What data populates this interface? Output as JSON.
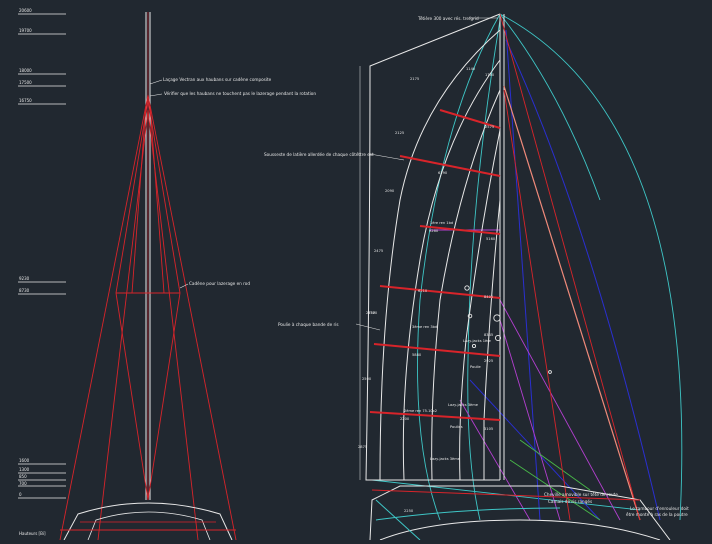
{
  "drawing": {
    "background": "#212830",
    "colors": {
      "white": "#e8e8e8",
      "red": "#d8242a",
      "cyan": "#3ec6c6",
      "blue": "#2a2fd0",
      "magenta": "#b43fd0",
      "green": "#48b848",
      "salmon": "#f08a7a"
    }
  },
  "heights": [
    "20600",
    "19700",
    "18000",
    "17500",
    "16750",
    "9230",
    "8730",
    "1600",
    "1300",
    "850",
    "700",
    "0"
  ],
  "base_label": "Hauteurs [Bi]",
  "mast_notes": {
    "note_top_1": "Laçage Vectran aux haubans sur cadène composite",
    "note_top_2": "Vérifier que les haubans ne touchent pas le lazerage pendant la rotation",
    "note_spreader": "Cadène pour lazerage en rod"
  },
  "sail_notes": {
    "head_note": "Têtière 300 avec rés. trefgrid",
    "batten_note": "Sousseste de latière allerdée de chaque côtéttre est",
    "reef_note": "Poulie à chaque bande de ris",
    "bottom_note_1": "Le tambour d'enrouleur doit",
    "bottom_note_2": "être monté à ras de la poutre",
    "bottom_note_3": "Cheville amovible sur tête de route",
    "bottom_note_4": "Camais de ris rangés"
  },
  "panel_labels": {
    "l1": "1140",
    "l2": "1760",
    "l3": "2175",
    "l4": "2125",
    "l5": "2090",
    "l6": "2475",
    "l7": "2570",
    "l8": "2500",
    "l9": "2875",
    "l10": "2575",
    "l11": "1ère ren 1bd",
    "l12": "3ème ren 3bd",
    "l13": "2ème ren 75.10x2",
    "l14": "Lazy-jacks 1ère",
    "l15": "Lazy-jacks 3ème",
    "l16": "Lazy-jacks 3ème",
    "l17": "Poulies",
    "l18": "Poulie",
    "l19": "8400",
    "l20": "5880",
    "l21": "3105",
    "l22": "2925",
    "l23": "2200",
    "l24": "6190",
    "l25": "9260",
    "l26": "5160",
    "l27": "8345",
    "l28": "6210",
    "l29": "2750",
    "l30": "2250"
  }
}
